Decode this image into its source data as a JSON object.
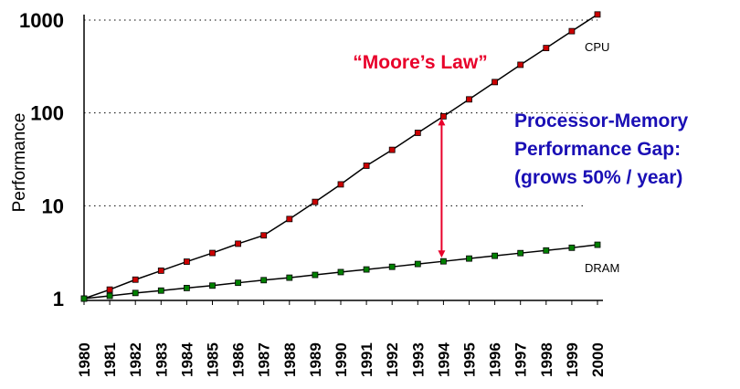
{
  "chart_data": {
    "type": "line",
    "ylabel": "Performance",
    "yscale": "log",
    "ylim": [
      1,
      1000
    ],
    "y_ticks": [
      "1",
      "10",
      "100",
      "1000"
    ],
    "grid": "dotted horizontal lines at 10, 100, 1000",
    "x": [
      "1980",
      "1981",
      "1982",
      "1983",
      "1984",
      "1985",
      "1986",
      "1987",
      "1988",
      "1989",
      "1990",
      "1991",
      "1992",
      "1993",
      "1994",
      "1995",
      "1996",
      "1997",
      "1998",
      "1999",
      "2000"
    ],
    "series": [
      {
        "name": "CPU",
        "color": "#cc0000",
        "values": [
          1,
          1.25,
          1.6,
          2.0,
          2.5,
          3.1,
          3.9,
          4.8,
          7.2,
          11,
          17,
          27,
          40,
          61,
          92,
          140,
          215,
          330,
          500,
          760,
          1150
        ]
      },
      {
        "name": "DRAM",
        "color": "#008000",
        "values": [
          1,
          1.07,
          1.15,
          1.22,
          1.3,
          1.38,
          1.48,
          1.58,
          1.68,
          1.8,
          1.93,
          2.06,
          2.2,
          2.36,
          2.52,
          2.7,
          2.89,
          3.09,
          3.3,
          3.53,
          3.8
        ]
      }
    ],
    "annotations": {
      "moores_law": "“Moore’s Law”",
      "moores_law_color": "#e8002a",
      "gap_lines": [
        "Processor-Memory",
        "Performance Gap:",
        "(grows 50% / year)"
      ],
      "gap_color": "#1a0fb5",
      "gap_year": "1994"
    }
  }
}
